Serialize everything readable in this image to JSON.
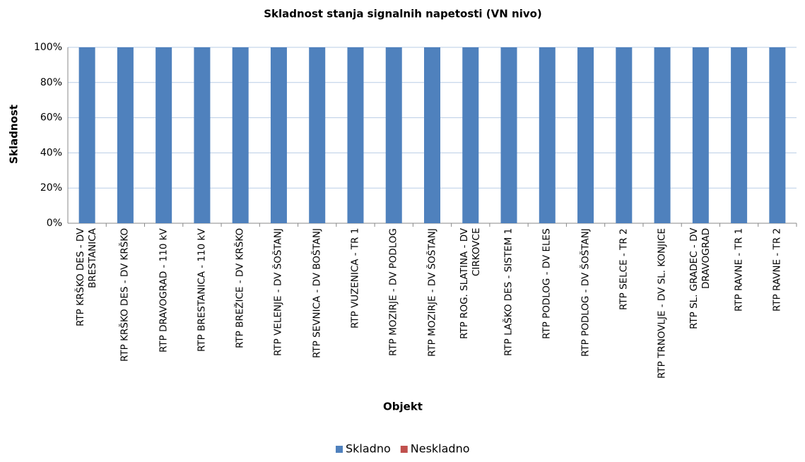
{
  "chart_data": {
    "type": "stacked_bar",
    "title": "Skladnost stanja signalnih napetosti (VN nivo)",
    "x_label": "Objekt",
    "y_label": "Skladnost",
    "categories": [
      "RTP KRŠKO DES - DV BRESTANICA",
      "RTP KRŠKO DES - DV KRŠKO",
      "RTP DRAVOGRAD - 110 kV",
      "RTP BRESTANICA - 110 kV",
      "RTP BREŽICE - DV KRŠKO",
      "RTP VELENJE - DV ŠOŠTANJ",
      "RTP SEVNICA - DV BOŠTANJ",
      "RTP VUZENICA - TR 1",
      "RTP MOZIRJE - DV PODLOG",
      "RTP MOZIRJE - DV ŠOŠTANJ",
      "RTP ROG. SLATINA - DV CIRKOVCE",
      "RTP LAŠKO DES - SISTEM 1",
      "RTP PODLOG - DV ELES",
      "RTP PODLOG - DV ŠOŠTANJ",
      "RTP SELCE - TR 2",
      "RTP TRNOVLJE - DV SL. KONJICE",
      "RTP SL. GRADEC - DV DRAVOGRAD",
      "RTP RAVNE - TR 1",
      "RTP RAVNE - TR 2"
    ],
    "series": [
      {
        "name": "Skladno",
        "color": "#4f81bd",
        "values": [
          100,
          100,
          100,
          100,
          100,
          100,
          100,
          100,
          100,
          100,
          100,
          100,
          100,
          100,
          100,
          100,
          100,
          100,
          100
        ]
      },
      {
        "name": "Neskladno",
        "color": "#c0504d",
        "values": [
          0,
          0,
          0,
          0,
          0,
          0,
          0,
          0,
          0,
          0,
          0,
          0,
          0,
          0,
          0,
          0,
          0,
          0,
          0
        ]
      }
    ],
    "ylim": [
      0,
      100
    ],
    "yticks": [
      {
        "value": 0,
        "label": "0%"
      },
      {
        "value": 20,
        "label": "20%"
      },
      {
        "value": 40,
        "label": "40%"
      },
      {
        "value": 60,
        "label": "60%"
      },
      {
        "value": 80,
        "label": "80%"
      },
      {
        "value": 100,
        "label": "100%"
      }
    ],
    "grid": true,
    "legend": "bottom"
  }
}
